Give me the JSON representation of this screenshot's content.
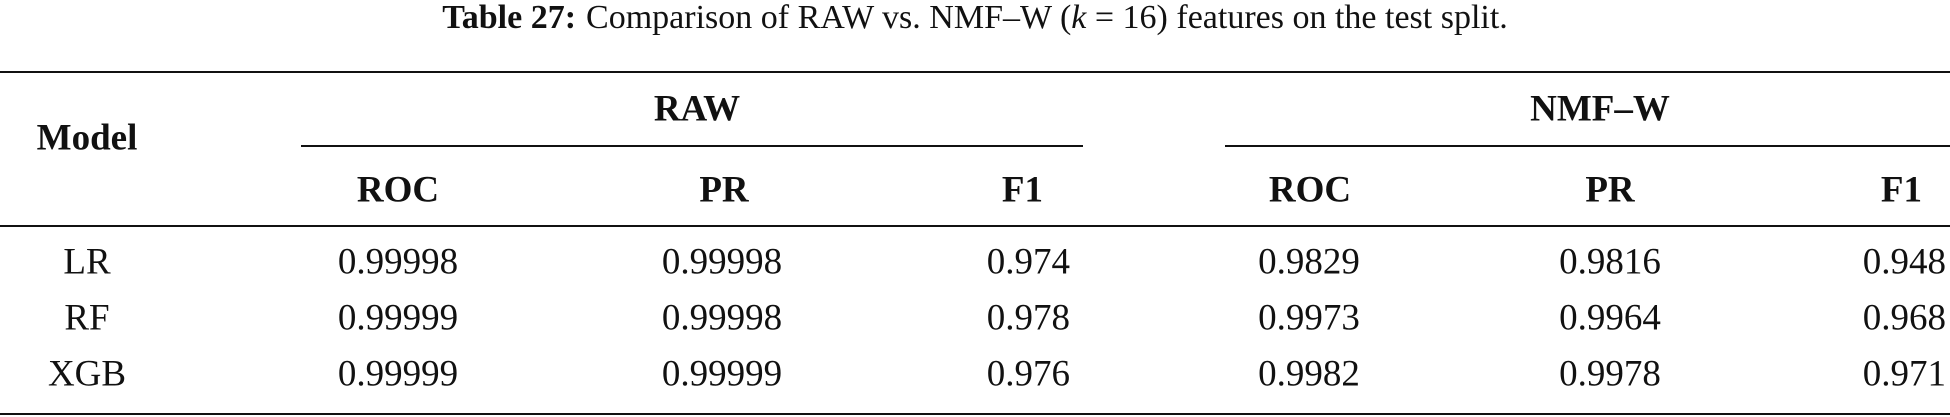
{
  "caption": {
    "label": "Table 27:",
    "text_before": "Comparison of RAW vs. NMF–W (",
    "variable": "k",
    "text_after": " = 16) features on the test split."
  },
  "table": {
    "row_header": "Model",
    "groups": [
      "RAW",
      "NMF–W"
    ],
    "columns": [
      "ROC",
      "PR",
      "F1",
      "ROC",
      "PR",
      "F1"
    ],
    "rows": [
      [
        "LR",
        "0.99998",
        "0.99998",
        "0.974",
        "0.9829",
        "0.9816",
        "0.948"
      ],
      [
        "RF",
        "0.99999",
        "0.99998",
        "0.978",
        "0.9973",
        "0.9964",
        "0.968"
      ],
      [
        "XGB",
        "0.99999",
        "0.99999",
        "0.976",
        "0.9982",
        "0.9978",
        "0.971"
      ]
    ]
  }
}
